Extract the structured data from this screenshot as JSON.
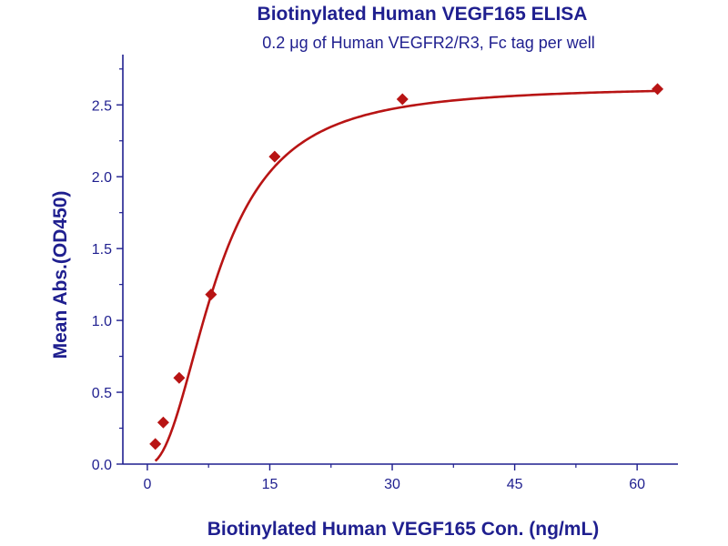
{
  "colors": {
    "text": "#1f1f8f",
    "axis": "#1f1f8f",
    "series": "#b81414",
    "background": "#ffffff"
  },
  "chart_data": {
    "type": "scatter",
    "title": "Biotinylated Human VEGF165 ELISA",
    "subtitle": "0.2 μg of Human VEGFR2/R3, Fc tag per well",
    "xlabel": "Biotinylated Human VEGF165 Con. (ng/mL)",
    "ylabel": "Mean Abs.(OD450)",
    "xlim": [
      -3,
      65
    ],
    "ylim": [
      0,
      2.85
    ],
    "xticks": [
      0,
      15,
      30,
      45,
      60
    ],
    "yticks": [
      0.0,
      0.5,
      1.0,
      1.5,
      2.0,
      2.5
    ],
    "xtick_labels": [
      "0",
      "15",
      "30",
      "45",
      "60"
    ],
    "ytick_labels": [
      "0.0",
      "0.5",
      "1.0",
      "1.5",
      "2.0",
      "2.5"
    ],
    "grid": false,
    "fit_curve": true,
    "series": [
      {
        "x": [
          0.98,
          1.95,
          3.9,
          7.8,
          15.6,
          31.25,
          62.5
        ],
        "y": [
          0.14,
          0.29,
          0.6,
          1.18,
          2.14,
          2.54,
          2.61
        ],
        "marker": "diamond"
      }
    ]
  }
}
